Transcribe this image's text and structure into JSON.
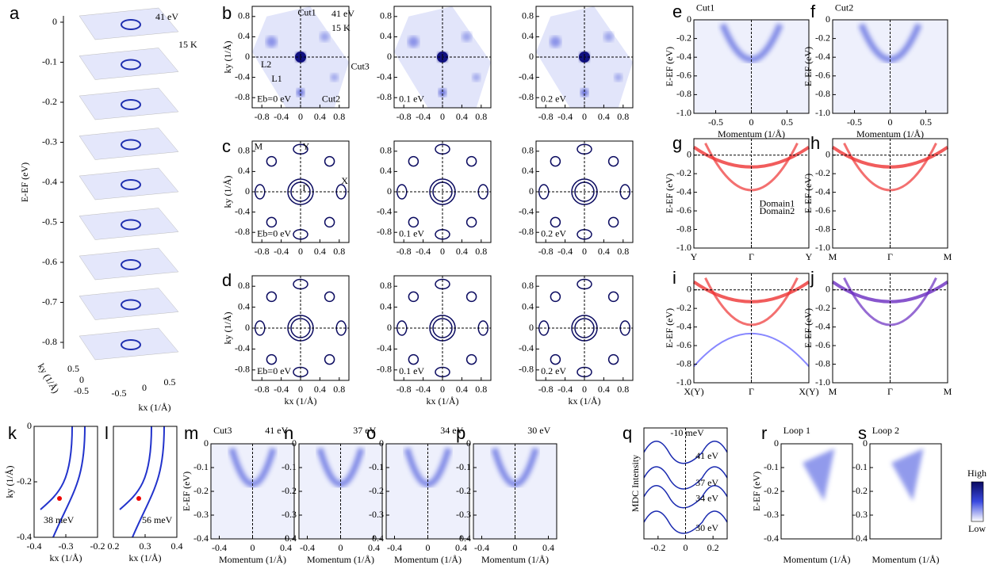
{
  "panels": [
    {
      "label": "a",
      "ylabel": "E-EF (eV)",
      "yticks": [
        "0",
        "-0.1",
        "-0.2",
        "-0.3",
        "-0.4",
        "-0.5",
        "-0.6",
        "-0.7",
        "-0.8"
      ],
      "xlabel": "kx (1/Å)",
      "xticks": [
        "-0.5",
        "0",
        "0.5"
      ],
      "zlabel": "ky (1/Å)",
      "zticks": [
        "0.5",
        "0",
        "-0.5"
      ],
      "notes": [
        "41 eV",
        "15 K"
      ]
    },
    {
      "label": "b",
      "ylabel": "ky (1/Å)",
      "yticks": [
        "0.8",
        "0.4",
        "0",
        "-0.4",
        "-0.8"
      ],
      "xticks": [
        "-0.8",
        "-0.4",
        "0",
        "0.4",
        "0.8"
      ],
      "notes": [
        "41 eV",
        "15 K",
        "Cut1",
        "Cut2",
        "Cut3",
        "L2",
        "L1",
        "Eb=0 eV"
      ]
    },
    {
      "yticks": [
        "0.8",
        "0.4",
        "0",
        "-0.4",
        "-0.8"
      ],
      "xticks": [
        "-0.8",
        "-0.4",
        "0",
        "0.4",
        "0.8"
      ],
      "notes": [
        "0.1 eV"
      ]
    },
    {
      "yticks": [
        "0.8",
        "0.4",
        "0",
        "-0.4",
        "-0.8"
      ],
      "xticks": [
        "-0.8",
        "-0.4",
        "0",
        "0.4",
        "0.8"
      ],
      "notes": [
        "0.2 eV"
      ]
    },
    {
      "label": "c",
      "ylabel": "ky (1/Å)",
      "yticks": [
        "0.8",
        "0.4",
        "0",
        "-0.4",
        "-0.8"
      ],
      "xticks": [
        "-0.8",
        "-0.4",
        "0",
        "0.4",
        "0.8"
      ],
      "notes": [
        "M",
        "Y",
        "X",
        "Γ",
        "Eb=0 eV"
      ]
    },
    {
      "yticks": [
        "0.8",
        "0.4",
        "0",
        "-0.4",
        "-0.8"
      ],
      "xticks": [
        "-0.8",
        "-0.4",
        "0",
        "0.4",
        "0.8"
      ],
      "notes": [
        "0.1 eV"
      ]
    },
    {
      "yticks": [
        "0.8",
        "0.4",
        "0",
        "-0.4",
        "-0.8"
      ],
      "xticks": [
        "-0.8",
        "-0.4",
        "0",
        "0.4",
        "0.8"
      ],
      "notes": [
        "0.2 eV"
      ]
    },
    {
      "label": "d",
      "ylabel": "ky (1/Å)",
      "yticks": [
        "0.8",
        "0.4",
        "0",
        "-0.4",
        "-0.8"
      ],
      "xticks": [
        "-0.8",
        "-0.4",
        "0",
        "0.4",
        "0.8"
      ],
      "xlabel": "kx (1/Å)",
      "notes": [
        "Eb=0 eV"
      ]
    },
    {
      "yticks": [
        "0.8",
        "0.4",
        "0",
        "-0.4",
        "-0.8"
      ],
      "xticks": [
        "-0.8",
        "-0.4",
        "0",
        "0.4",
        "0.8"
      ],
      "xlabel": "kx (1/Å)",
      "notes": [
        "0.1 eV"
      ]
    },
    {
      "yticks": [
        "0.8",
        "0.4",
        "0",
        "-0.4",
        "-0.8"
      ],
      "xticks": [
        "-0.8",
        "-0.4",
        "0",
        "0.4",
        "0.8"
      ],
      "xlabel": "kx (1/Å)",
      "notes": [
        "0.2 eV"
      ]
    },
    {
      "label": "e",
      "ylabel": "E-EF (eV)",
      "yticks": [
        "0",
        "-0.2",
        "-0.4",
        "-0.6",
        "-0.8",
        "-1.0"
      ],
      "xticks": [
        "-0.5",
        "0",
        "0.5"
      ],
      "xlabel": "Momentum (1/Å)",
      "notes": [
        "Cut1"
      ]
    },
    {
      "label": "f",
      "ylabel": "E-EF (eV)",
      "yticks": [
        "0",
        "-0.2",
        "-0.4",
        "-0.6",
        "-0.8",
        "-1.0"
      ],
      "xticks": [
        "-0.5",
        "0",
        "0.5"
      ],
      "xlabel": "Momentum (1/Å)",
      "notes": [
        "Cut2"
      ]
    },
    {
      "label": "g",
      "ylabel": "E-EF (eV)",
      "yticks": [
        "0",
        "-0.2",
        "-0.4",
        "-0.6",
        "-0.8",
        "-1.0"
      ],
      "xticks": [
        "Y",
        "Γ",
        "Y"
      ],
      "notes": [
        "Domain1",
        "Domain2"
      ]
    },
    {
      "label": "h",
      "ylabel": "E-EF (eV)",
      "yticks": [
        "0",
        "-0.2",
        "-0.4",
        "-0.6",
        "-0.8",
        "-1.0"
      ],
      "xticks": [
        "M",
        "Γ",
        "M"
      ]
    },
    {
      "label": "i",
      "ylabel": "E-EF (eV)",
      "yticks": [
        "0",
        "-0.2",
        "-0.4",
        "-0.6",
        "-0.8",
        "-1.0"
      ],
      "xticks": [
        "X(Y)",
        "Γ",
        "X(Y)"
      ]
    },
    {
      "label": "j",
      "ylabel": "E-EF (eV)",
      "yticks": [
        "0",
        "-0.2",
        "-0.4",
        "-0.6",
        "-0.8",
        "-1.0"
      ],
      "xticks": [
        "M",
        "Γ",
        "M"
      ]
    },
    {
      "label": "k",
      "ylabel": "ky (1/Å)",
      "yticks": [
        "0",
        "-0.2",
        "-0.4"
      ],
      "xticks": [
        "-0.4",
        "-0.3",
        "-0.2"
      ],
      "xlabel": "kx (1/Å)",
      "notes": [
        "38 meV"
      ]
    },
    {
      "label": "l",
      "xticks": [
        "0.2",
        "0.3",
        "0.4"
      ],
      "xlabel": "kx (1/Å)",
      "notes": [
        "56 meV"
      ]
    },
    {
      "label": "m",
      "ylabel": "E-EF (eV)",
      "yticks": [
        "0",
        "-0.1",
        "-0.2",
        "-0.3",
        "-0.4"
      ],
      "xticks": [
        "-0.4",
        "0",
        "0.4"
      ],
      "xlabel": "Momentum (1/Å)",
      "notes": [
        "Cut3",
        "41 eV"
      ]
    },
    {
      "label": "n",
      "yticks": [
        "0",
        "-0.1",
        "-0.2",
        "-0.3",
        "-0.4"
      ],
      "xticks": [
        "-0.4",
        "0",
        "0.4"
      ],
      "xlabel": "Momentum (1/Å)",
      "notes": [
        "37 eV"
      ]
    },
    {
      "label": "o",
      "yticks": [
        "0",
        "-0.1",
        "-0.2",
        "-0.3",
        "-0.4"
      ],
      "xticks": [
        "-0.4",
        "0",
        "0.4"
      ],
      "xlabel": "Momentum (1/Å)",
      "notes": [
        "34 eV"
      ]
    },
    {
      "label": "p",
      "yticks": [
        "0",
        "-0.1",
        "-0.2",
        "-0.3",
        "-0.4"
      ],
      "xticks": [
        "-0.4",
        "0",
        "0.4"
      ],
      "xlabel": "Momentum (1/Å)",
      "notes": [
        "30 eV"
      ]
    },
    {
      "label": "q",
      "ylabel": "MDC Intensity",
      "xticks": [
        "-0.2",
        "0",
        "0.2"
      ],
      "notes": [
        "-10 meV",
        "41 eV",
        "37 eV",
        "34 eV",
        "30 eV"
      ]
    },
    {
      "label": "r",
      "ylabel": "E-EF (eV)",
      "yticks": [
        "0",
        "-0.1",
        "-0.2",
        "-0.3",
        "-0.4"
      ],
      "xlabel": "Momentum (1/Å)",
      "notes": [
        "Loop 1"
      ]
    },
    {
      "label": "s",
      "yticks": [
        "0",
        "-0.1",
        "-0.2",
        "-0.3",
        "-0.4"
      ],
      "xlabel": "Momentum (1/Å)",
      "notes": [
        "Loop 2"
      ]
    }
  ],
  "colorbar": {
    "high": "High",
    "low": "Low"
  }
}
